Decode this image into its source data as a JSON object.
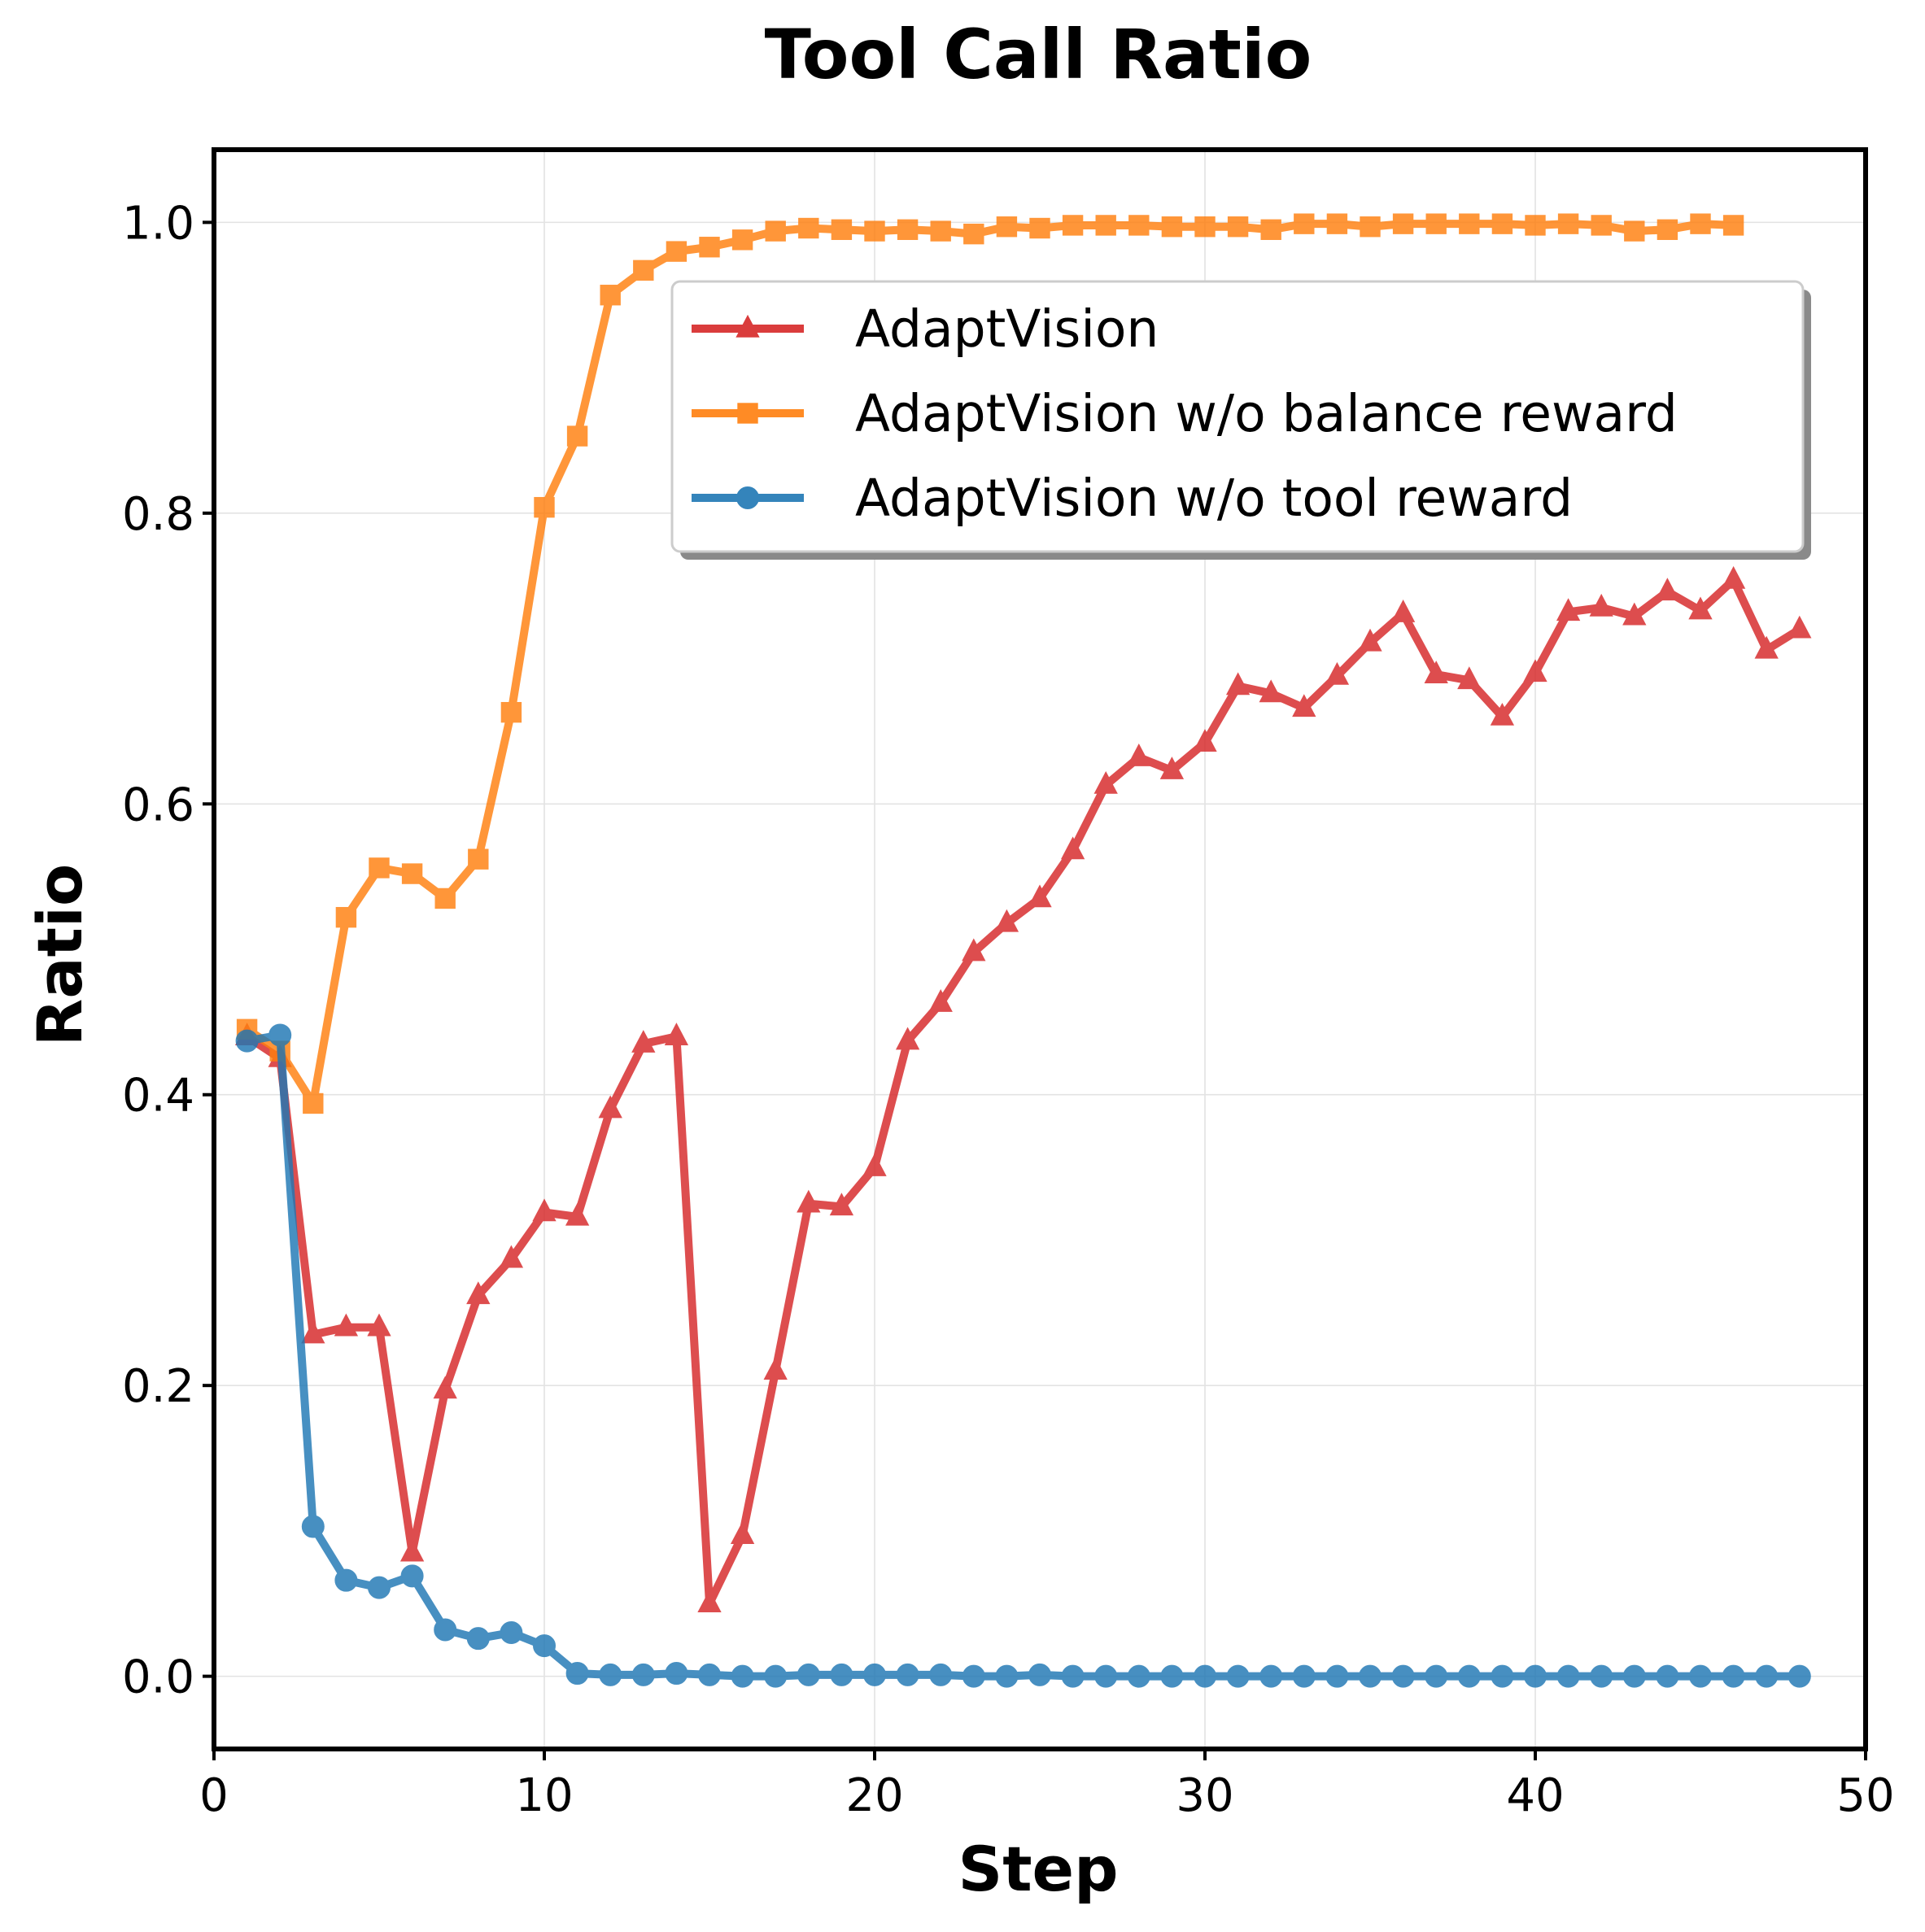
{
  "chart_data": {
    "type": "line",
    "title": "Tool Call Ratio",
    "xlabel": "Step",
    "ylabel": "Ratio",
    "xlim": [
      0,
      50
    ],
    "ylim": [
      -0.05,
      1.05
    ],
    "x_ticks": [
      0,
      10,
      20,
      30,
      40,
      50
    ],
    "y_ticks": [
      0.0,
      0.2,
      0.4,
      0.6,
      0.8,
      1.0
    ],
    "x_tick_labels": [
      "0",
      "10",
      "20",
      "30",
      "40",
      "50"
    ],
    "y_tick_labels": [
      "0.0",
      "0.2",
      "0.4",
      "0.6",
      "0.8",
      "1.0"
    ],
    "grid": true,
    "legend_position": "upper-right",
    "series": [
      {
        "name": "AdaptVision",
        "color": "#d62728",
        "marker": "triangle",
        "x": [
          1,
          2,
          3,
          4,
          5,
          6,
          7,
          8,
          9,
          10,
          11,
          12,
          13,
          14,
          15,
          16,
          17,
          18,
          19,
          20,
          21,
          22,
          23,
          24,
          25,
          26,
          27,
          28,
          29,
          30,
          31,
          32,
          33,
          34,
          35,
          36,
          37,
          38,
          39,
          40,
          41,
          42,
          43,
          44,
          45,
          46,
          47,
          48
        ],
        "y": [
          0.44,
          0.425,
          0.235,
          0.24,
          0.24,
          0.085,
          0.197,
          0.262,
          0.287,
          0.319,
          0.316,
          0.39,
          0.435,
          0.44,
          0.05,
          0.097,
          0.21,
          0.325,
          0.323,
          0.35,
          0.437,
          0.463,
          0.498,
          0.518,
          0.535,
          0.568,
          0.613,
          0.632,
          0.623,
          0.642,
          0.681,
          0.676,
          0.666,
          0.688,
          0.711,
          0.731,
          0.689,
          0.685,
          0.66,
          0.69,
          0.732,
          0.735,
          0.729,
          0.746,
          0.733,
          0.754,
          0.706,
          0.72
        ]
      },
      {
        "name": "AdaptVision w/o balance reward",
        "color": "#ff7f0e",
        "marker": "square",
        "x": [
          1,
          2,
          3,
          4,
          5,
          6,
          7,
          8,
          9,
          10,
          11,
          12,
          13,
          14,
          15,
          16,
          17,
          18,
          19,
          20,
          21,
          22,
          23,
          24,
          25,
          26,
          27,
          28,
          29,
          30,
          31,
          32,
          33,
          34,
          35,
          36,
          37,
          38,
          39,
          40,
          41,
          42,
          43,
          44,
          45,
          46
        ],
        "y": [
          0.445,
          0.43,
          0.394,
          0.522,
          0.556,
          0.552,
          0.535,
          0.562,
          0.663,
          0.804,
          0.853,
          0.95,
          0.967,
          0.98,
          0.983,
          0.988,
          0.994,
          0.996,
          0.995,
          0.994,
          0.995,
          0.994,
          0.992,
          0.997,
          0.996,
          0.998,
          0.998,
          0.998,
          0.997,
          0.997,
          0.997,
          0.995,
          0.999,
          0.999,
          0.997,
          0.999,
          0.999,
          0.999,
          0.999,
          0.998,
          0.999,
          0.998,
          0.994,
          0.995,
          0.999,
          0.998
        ]
      },
      {
        "name": "AdaptVision w/o tool reward",
        "color": "#1f77b4",
        "marker": "circle",
        "x": [
          1,
          2,
          3,
          4,
          5,
          6,
          7,
          8,
          9,
          10,
          11,
          12,
          13,
          14,
          15,
          16,
          17,
          18,
          19,
          20,
          21,
          22,
          23,
          24,
          25,
          26,
          27,
          28,
          29,
          30,
          31,
          32,
          33,
          34,
          35,
          36,
          37,
          38,
          39,
          40,
          41,
          42,
          43,
          44,
          45,
          46,
          47,
          48
        ],
        "y": [
          0.437,
          0.441,
          0.103,
          0.066,
          0.061,
          0.069,
          0.032,
          0.026,
          0.03,
          0.021,
          0.002,
          0.001,
          0.001,
          0.002,
          0.001,
          0.0,
          0.0,
          0.001,
          0.001,
          0.001,
          0.001,
          0.001,
          0.0,
          0.0,
          0.001,
          0.0,
          0.0,
          0.0,
          0.0,
          0.0,
          0.0,
          0.0,
          0.0,
          0.0,
          0.0,
          0.0,
          0.0,
          0.0,
          0.0,
          0.0,
          0.0,
          0.0,
          0.0,
          0.0,
          0.0,
          0.0,
          0.0,
          0.0
        ]
      }
    ]
  }
}
